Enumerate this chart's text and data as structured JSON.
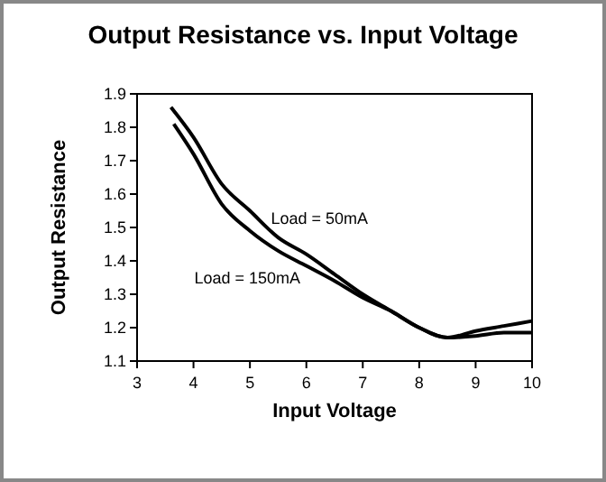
{
  "chart_data": {
    "type": "line",
    "title": "Output Resistance vs. Input Voltage",
    "xlabel": "Input Voltage",
    "ylabel": "Output Resistance",
    "xlim": [
      3,
      10
    ],
    "xticks": [
      3,
      4,
      5,
      6,
      7,
      8,
      9,
      10
    ],
    "ylim": [
      1.1,
      1.9
    ],
    "yticks": [
      1.1,
      1.2,
      1.3,
      1.4,
      1.5,
      1.6,
      1.7,
      1.8,
      1.9
    ],
    "series": [
      {
        "name": "Load = 50mA",
        "color": "#000000",
        "x": [
          3.6,
          4,
          4.5,
          5,
          5.5,
          6,
          6.5,
          7,
          7.5,
          8,
          8.5,
          9,
          9.5,
          10
        ],
        "values": [
          1.86,
          1.77,
          1.63,
          1.55,
          1.47,
          1.42,
          1.36,
          1.3,
          1.25,
          1.2,
          1.17,
          1.19,
          1.205,
          1.22
        ]
      },
      {
        "name": "Load = 150mA",
        "color": "#000000",
        "x": [
          3.65,
          4,
          4.5,
          5,
          5.5,
          6,
          6.5,
          7,
          7.5,
          8,
          8.5,
          9,
          9.5,
          10
        ],
        "values": [
          1.81,
          1.72,
          1.57,
          1.49,
          1.43,
          1.385,
          1.34,
          1.29,
          1.25,
          1.2,
          1.17,
          1.175,
          1.185,
          1.185
        ]
      }
    ],
    "marker": "none",
    "line_style": "solid"
  }
}
